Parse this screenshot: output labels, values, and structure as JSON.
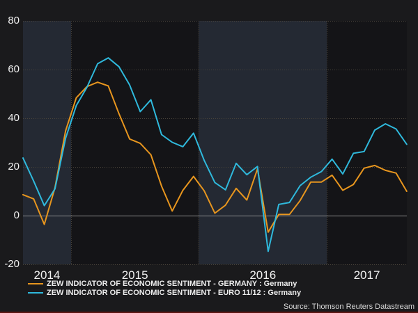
{
  "source_note": "Source: Thomson Reuters Datastream",
  "colors": {
    "background": "#1A1A1C",
    "plot_bg": "#141417",
    "band_bg": "#242933",
    "grid": "#4A443A",
    "zero_line": "#8F8F8F",
    "axis_text": "#F0F0F0",
    "germany_line": "#E8961E",
    "euro_line": "#2FB9DC",
    "accent_red": "#5A1511"
  },
  "chart_data": {
    "type": "line",
    "title": "",
    "xlabel": "",
    "ylabel": "",
    "ylim": [
      -20,
      80
    ],
    "y_ticks": [
      80,
      60,
      40,
      20,
      0,
      -20
    ],
    "x_tick_labels": [
      "2014",
      "2015",
      "2016",
      "2017"
    ],
    "shaded_years": [
      "2014",
      "2016"
    ],
    "grid": "dotted horizontal gridlines, dotted vertical year boundaries, solid zero line",
    "legend_position": "bottom-left",
    "x": [
      "2014-08",
      "2014-09",
      "2014-10",
      "2014-11",
      "2014-12",
      "2015-01",
      "2015-02",
      "2015-03",
      "2015-04",
      "2015-05",
      "2015-06",
      "2015-07",
      "2015-08",
      "2015-09",
      "2015-10",
      "2015-11",
      "2015-12",
      "2016-01",
      "2016-02",
      "2016-03",
      "2016-04",
      "2016-05",
      "2016-06",
      "2016-07",
      "2016-08",
      "2016-09",
      "2016-10",
      "2016-11",
      "2016-12",
      "2017-01",
      "2017-02",
      "2017-03",
      "2017-04",
      "2017-05",
      "2017-06",
      "2017-07",
      "2017-08"
    ],
    "series": [
      {
        "name": "ZEW INDICATOR OF ECONOMIC SENTIMENT - GERMANY : Germany",
        "color": "#E8961E",
        "values": [
          8.6,
          6.9,
          -3.6,
          11.5,
          34.9,
          48.4,
          53.0,
          54.8,
          53.3,
          41.9,
          31.5,
          29.7,
          25.0,
          12.1,
          1.9,
          10.4,
          16.1,
          10.2,
          1.0,
          4.3,
          11.2,
          6.4,
          19.2,
          -6.8,
          0.5,
          0.5,
          6.2,
          13.8,
          13.8,
          16.6,
          10.4,
          12.8,
          19.5,
          20.6,
          18.6,
          17.5,
          10.0
        ]
      },
      {
        "name": "ZEW INDICATOR OF ECONOMIC SENTIMENT - EURO 11/12 : Germany",
        "color": "#2FB9DC",
        "values": [
          23.7,
          14.2,
          4.1,
          11.0,
          31.8,
          45.2,
          52.7,
          62.4,
          64.8,
          61.2,
          53.7,
          42.7,
          47.6,
          33.3,
          30.1,
          28.3,
          33.9,
          22.7,
          13.6,
          10.6,
          21.5,
          16.8,
          20.2,
          -14.7,
          4.6,
          5.4,
          12.3,
          15.8,
          18.1,
          23.2,
          17.1,
          25.6,
          26.3,
          35.1,
          37.7,
          35.6,
          29.3
        ]
      }
    ]
  }
}
